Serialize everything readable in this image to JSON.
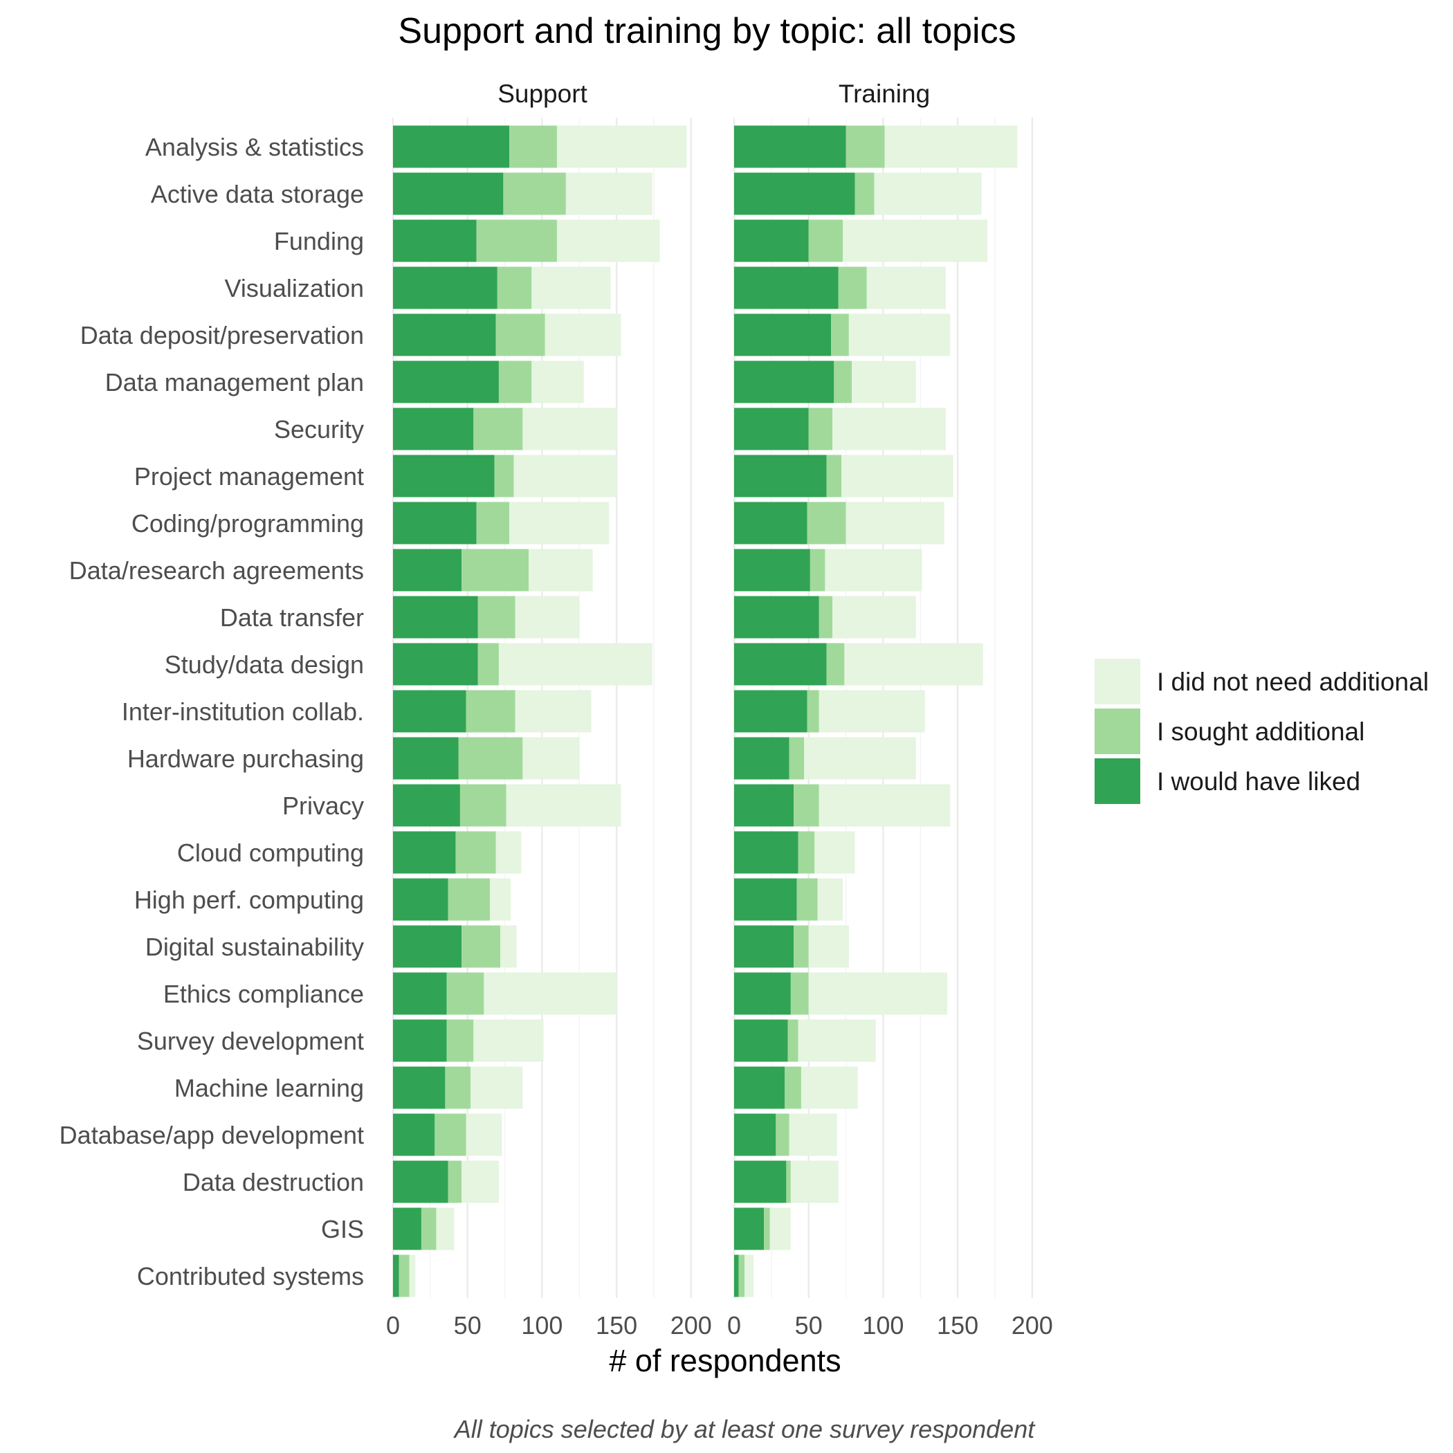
{
  "chart_data": {
    "type": "bar",
    "orientation": "horizontal",
    "stacked": true,
    "title": "Support and training by topic: all topics",
    "xlabel": "# of respondents",
    "caption": "All topics selected by at least one survey respondent",
    "xlim": [
      0,
      200
    ],
    "x_ticks": [
      0,
      50,
      100,
      150,
      200
    ],
    "grid": true,
    "legend_position": "right",
    "categories": [
      "Analysis & statistics",
      "Active data storage",
      "Funding",
      "Visualization",
      "Data deposit/preservation",
      "Data management plan",
      "Security",
      "Project management",
      "Coding/programming",
      "Data/research agreements",
      "Data transfer",
      "Study/data design",
      "Inter-institution collab.",
      "Hardware purchasing",
      "Privacy",
      "Cloud computing",
      "High perf. computing",
      "Digital sustainability",
      "Ethics compliance",
      "Survey development",
      "Machine learning",
      "Database/app development",
      "Data destruction",
      "GIS",
      "Contributed systems"
    ],
    "series_order": [
      "I did not need additional",
      "I sought additional",
      "I would have liked"
    ],
    "colors": {
      "I did not need additional": "#e5f5e0",
      "I sought additional": "#a1d99b",
      "I would have liked": "#31a354"
    },
    "facets": [
      {
        "name": "Support",
        "series": [
          {
            "name": "I would have liked",
            "values": [
              78,
              74,
              56,
              70,
              69,
              71,
              54,
              68,
              56,
              46,
              57,
              57,
              49,
              44,
              45,
              42,
              37,
              46,
              36,
              36,
              35,
              28,
              37,
              19,
              4
            ]
          },
          {
            "name": "I sought additional",
            "values": [
              32,
              42,
              54,
              23,
              33,
              22,
              33,
              13,
              22,
              45,
              25,
              14,
              33,
              43,
              31,
              27,
              28,
              26,
              25,
              18,
              17,
              21,
              9,
              10,
              7
            ]
          },
          {
            "name": "I did not need additional",
            "values": [
              87,
              58,
              69,
              53,
              51,
              35,
              63,
              69,
              67,
              43,
              43,
              103,
              51,
              38,
              77,
              17,
              14,
              11,
              89,
              47,
              35,
              24,
              25,
              12,
              4
            ]
          }
        ]
      },
      {
        "name": "Training",
        "series": [
          {
            "name": "I would have liked",
            "values": [
              75,
              81,
              50,
              70,
              65,
              67,
              50,
              62,
              49,
              51,
              57,
              62,
              49,
              37,
              40,
              43,
              42,
              40,
              38,
              36,
              34,
              28,
              35,
              20,
              3
            ]
          },
          {
            "name": "I sought additional",
            "values": [
              26,
              13,
              23,
              19,
              12,
              12,
              16,
              10,
              26,
              10,
              9,
              12,
              8,
              10,
              17,
              11,
              14,
              10,
              12,
              7,
              11,
              9,
              3,
              4,
              4
            ]
          },
          {
            "name": "I did not need additional",
            "values": [
              89,
              72,
              97,
              53,
              68,
              43,
              76,
              75,
              66,
              65,
              56,
              93,
              71,
              75,
              88,
              27,
              17,
              27,
              93,
              52,
              38,
              32,
              32,
              14,
              6
            ]
          }
        ]
      }
    ]
  }
}
